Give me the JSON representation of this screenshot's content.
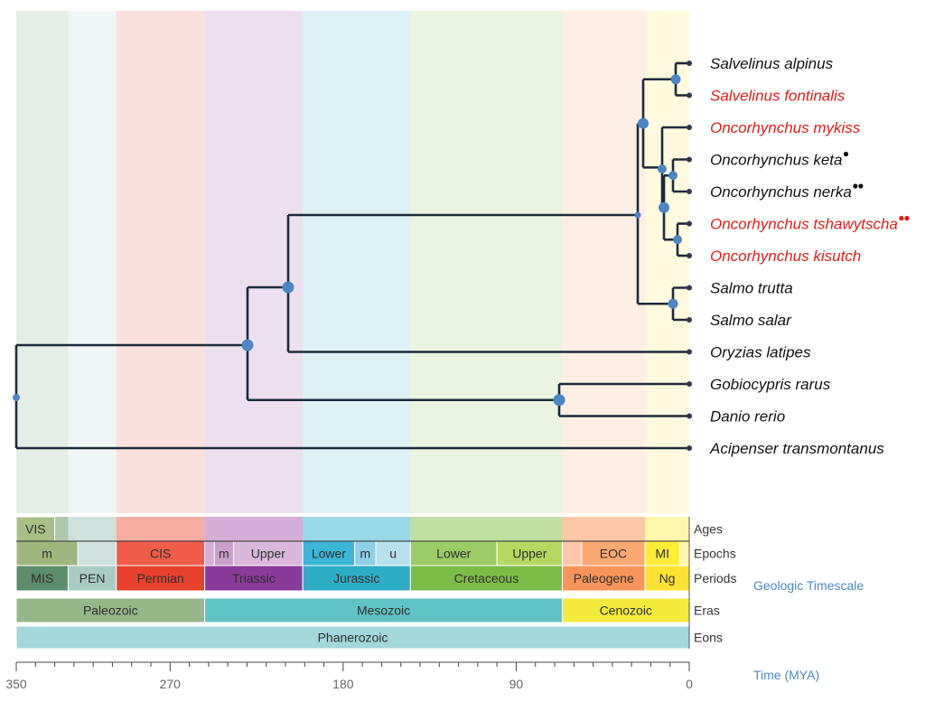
{
  "colors": {
    "highlight": "#e51b1b",
    "normal": "#111111",
    "branch": "#1d2a3a",
    "node": "#4a86c5"
  },
  "taxa": [
    {
      "name": "Salvelinus alpinus",
      "highlight": false,
      "dots": 0
    },
    {
      "name": "Salvelinus fontinalis",
      "highlight": true,
      "dots": 0
    },
    {
      "name": "Oncorhynchus mykiss",
      "highlight": true,
      "dots": 0
    },
    {
      "name": "Oncorhynchus keta",
      "highlight": false,
      "dots": 1
    },
    {
      "name": "Oncorhynchus nerka",
      "highlight": false,
      "dots": 2
    },
    {
      "name": "Oncorhynchus tshawytscha",
      "highlight": true,
      "dots": 2
    },
    {
      "name": "Oncorhynchus kisutch",
      "highlight": true,
      "dots": 0
    },
    {
      "name": "Salmo trutta",
      "highlight": false,
      "dots": 0
    },
    {
      "name": "Salmo salar",
      "highlight": false,
      "dots": 0
    },
    {
      "name": "Oryzias latipes",
      "highlight": false,
      "dots": 0
    },
    {
      "name": "Gobiocypris rarus",
      "highlight": false,
      "dots": 0
    },
    {
      "name": "Danio rerio",
      "highlight": false,
      "dots": 0
    },
    {
      "name": "Acipenser transmontanus",
      "highlight": false,
      "dots": 0
    }
  ],
  "timescale": {
    "rows": {
      "ages": "Ages",
      "epochs": "Epochs",
      "periods": "Periods",
      "eras": "Eras",
      "eons": "Eons"
    },
    "geologic_label": "Geologic Timescale",
    "ages": [
      {
        "label": "VIS",
        "from": 350,
        "to": 330,
        "color": "#a9bf88"
      }
    ],
    "epochs": [
      {
        "label": "m",
        "from": 350,
        "to": 318,
        "color": "#9fb77e"
      },
      {
        "label": "CIS",
        "from": 298,
        "to": 252,
        "color": "#ef5c4a"
      },
      {
        "label": "m",
        "from": 247,
        "to": 237,
        "color": "#c9a0cc"
      },
      {
        "label": "Upper",
        "from": 237,
        "to": 201,
        "color": "#d9b8dc"
      },
      {
        "label": "Lower",
        "from": 201,
        "to": 174,
        "color": "#3ab6d6"
      },
      {
        "label": "m",
        "from": 174,
        "to": 163,
        "color": "#8fd0e6"
      },
      {
        "label": "u",
        "from": 163,
        "to": 145,
        "color": "#b8e1ef"
      },
      {
        "label": "Lower",
        "from": 145,
        "to": 100,
        "color": "#9ccc66"
      },
      {
        "label": "Upper",
        "from": 100,
        "to": 66,
        "color": "#b5d863"
      },
      {
        "label": "EOC",
        "from": 56,
        "to": 23,
        "color": "#fba872"
      },
      {
        "label": "MI",
        "from": 23,
        "to": 5,
        "color": "#ffec38"
      }
    ],
    "periods": [
      {
        "label": "MIS",
        "from": 350,
        "to": 323,
        "color": "#5c8c6a"
      },
      {
        "label": "PEN",
        "from": 323,
        "to": 298,
        "color": "#a9cbc4"
      },
      {
        "label": "Permian",
        "from": 298,
        "to": 252,
        "color": "#e8412e"
      },
      {
        "label": "Triassic",
        "from": 252,
        "to": 201,
        "color": "#8a3a9a"
      },
      {
        "label": "Jurassic",
        "from": 201,
        "to": 145,
        "color": "#2eaec6"
      },
      {
        "label": "Cretaceous",
        "from": 145,
        "to": 66,
        "color": "#7cbc47"
      },
      {
        "label": "Paleogene",
        "from": 66,
        "to": 23,
        "color": "#f7945a"
      },
      {
        "label": "Ng",
        "from": 23,
        "to": 0,
        "color": "#ffe233"
      }
    ],
    "eras": [
      {
        "label": "Paleozoic",
        "from": 350,
        "to": 252,
        "color": "#95b88a"
      },
      {
        "label": "Mesozoic",
        "from": 252,
        "to": 66,
        "color": "#60c3c4"
      },
      {
        "label": "Cenozoic",
        "from": 66,
        "to": 0,
        "color": "#f3ea3c"
      }
    ],
    "eons": [
      {
        "label": "Phanerozoic",
        "from": 350,
        "to": 0,
        "color": "#a3d7dc"
      }
    ]
  },
  "axis": {
    "label": "Time (MYA)",
    "ticks": [
      {
        "value": 350,
        "label": "350"
      },
      {
        "value": 270,
        "label": "270"
      },
      {
        "value": 180,
        "label": "180"
      },
      {
        "value": 90,
        "label": "90"
      },
      {
        "value": 0,
        "label": "0"
      }
    ]
  }
}
